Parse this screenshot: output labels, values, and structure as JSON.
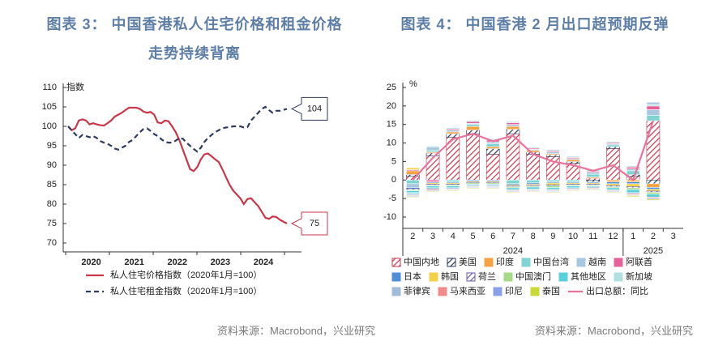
{
  "chart_data": [
    {
      "type": "line",
      "title": [
        "图表 3：  中国香港私人住宅价格和租金价格",
        "走势持续背离"
      ],
      "ylabel": "指数",
      "categories": [
        null,
        null,
        null,
        null,
        null,
        null,
        "2020",
        null,
        null,
        null,
        null,
        null,
        null,
        null,
        null,
        null,
        null,
        null,
        "2021",
        null,
        null,
        null,
        null,
        null,
        null,
        null,
        null,
        null,
        null,
        null,
        "2022",
        null,
        null,
        null,
        null,
        null,
        null,
        null,
        null,
        null,
        null,
        null,
        "2023",
        null,
        null,
        null,
        null,
        null,
        null,
        null,
        null,
        null,
        null,
        null,
        "2024",
        null,
        null,
        null,
        null,
        null,
        null,
        null
      ],
      "ylim": [
        70,
        110
      ],
      "yticks": [
        70,
        75,
        80,
        85,
        90,
        95,
        100,
        105,
        110
      ],
      "series": [
        {
          "name": "私人住宅价格指数（2020年1月=100）",
          "color": "#c8374a",
          "dash": false,
          "end_label": "75",
          "values": [
            100,
            99,
            99.5,
            101.5,
            101.8,
            101.5,
            100.5,
            100.8,
            100.5,
            100.3,
            100.2,
            100.8,
            101.5,
            102.5,
            103,
            103.5,
            104.2,
            104.8,
            104.8,
            104.8,
            104.5,
            103.8,
            103.5,
            103.7,
            103,
            101,
            100.8,
            101.5,
            101.3,
            100,
            98.5,
            96.5,
            94,
            91.5,
            89,
            88.5,
            89.5,
            91.5,
            92.8,
            93,
            92.3,
            91.5,
            90.8,
            89,
            87,
            85,
            83.5,
            82.5,
            81.5,
            80,
            81.3,
            81.5,
            80.5,
            79.5,
            78,
            76.5,
            76.2,
            76.8,
            76.7,
            76,
            75.5,
            75
          ]
        },
        {
          "name": "私人住宅租金指数（2020年1月=100）",
          "color": "#2d3a5e",
          "dash": true,
          "end_label": "104",
          "values": [
            100,
            99,
            98,
            97,
            97.8,
            97.5,
            97.2,
            97.5,
            97,
            96.2,
            95.8,
            95.5,
            95,
            94.3,
            94,
            94.5,
            95,
            96,
            96.5,
            97.5,
            98.5,
            99.3,
            99.5,
            98.8,
            98,
            97.5,
            96.7,
            96,
            95.8,
            95.8,
            96.3,
            97,
            96.8,
            95.8,
            95,
            94.2,
            93.5,
            94.5,
            96,
            97,
            97.8,
            98.5,
            99,
            99.5,
            99.7,
            99.8,
            100,
            100,
            100,
            99.7,
            99.8,
            101.5,
            102.5,
            103.5,
            104.5,
            105,
            104.2,
            103.5,
            104,
            104,
            104.2,
            104.5
          ]
        }
      ],
      "source": "资料来源：Macrobond，兴业研究"
    },
    {
      "type": "bar",
      "stacked": true,
      "title": [
        "图表 4：  中国香港 2 月出口超预期反弹"
      ],
      "ylabel": "%",
      "categories": [
        "2",
        "3",
        "4",
        "5",
        "6",
        "7",
        "8",
        "9",
        "10",
        "11",
        "12",
        "1",
        "2",
        "3"
      ],
      "x_groups": [
        {
          "label": "2024",
          "count": 11
        },
        {
          "label": "2025",
          "count": 3
        }
      ],
      "ylim": [
        -10,
        25
      ],
      "yticks": [
        -10,
        -5,
        0,
        5,
        10,
        15,
        20,
        25
      ],
      "series": [
        {
          "name": "中国内地",
          "color": "#c8374a",
          "hatch": true,
          "values": [
            1,
            6.5,
            11.5,
            12.5,
            7,
            12.5,
            7,
            6.3,
            4.5,
            0.5,
            8.5,
            1,
            16,
            null
          ]
        },
        {
          "name": "美国",
          "color": "#2d3a5e",
          "hatch": true,
          "values": [
            0.5,
            0.8,
            1,
            1,
            1.5,
            1.2,
            0.5,
            0.5,
            0.5,
            -0.5,
            0.5,
            0.5,
            -1,
            null
          ]
        },
        {
          "name": "印度",
          "color": "#f4a340",
          "values": [
            1,
            0.3,
            0.5,
            1,
            0.5,
            0.8,
            0.5,
            0.3,
            0.5,
            0.3,
            -0.5,
            -0.5,
            -1,
            null
          ]
        },
        {
          "name": "中国台湾",
          "color": "#7fd3d0",
          "values": [
            -1,
            0.5,
            -0.5,
            0.5,
            0.8,
            -1,
            -0.8,
            -0.5,
            -0.5,
            0.8,
            0.5,
            1,
            1.5,
            null
          ]
        },
        {
          "name": "越南",
          "color": "#a8c8e0",
          "values": [
            -1,
            0.8,
            0.5,
            0.3,
            0.5,
            0.5,
            0.3,
            0.5,
            0.3,
            0.5,
            0.3,
            0.5,
            1.5,
            null
          ]
        },
        {
          "name": "阿联酋",
          "color": "#e8609a",
          "values": [
            0.3,
            -0.5,
            0.3,
            0.5,
            0.5,
            0.5,
            0.3,
            0.3,
            0.3,
            0.3,
            0.3,
            0.5,
            1,
            null
          ]
        },
        {
          "name": "日本",
          "color": "#4f8fd8",
          "values": [
            -0.3,
            -0.3,
            -0.3,
            -0.3,
            -0.3,
            -0.3,
            -0.3,
            -0.3,
            -0.3,
            -0.3,
            -0.5,
            -0.5,
            -0.5,
            null
          ]
        },
        {
          "name": "韩国",
          "color": "#f2d24a",
          "values": [
            0.5,
            -0.3,
            -0.3,
            -0.3,
            -0.3,
            -0.3,
            -0.3,
            -0.5,
            -0.3,
            -0.3,
            -0.5,
            -0.8,
            -0.5,
            null
          ]
        },
        {
          "name": "荷兰",
          "color": "#6a5aa8",
          "hatch": true,
          "values": [
            -0.3,
            -0.2,
            -0.2,
            -0.2,
            -0.2,
            -0.2,
            -0.2,
            -0.2,
            -0.2,
            -0.2,
            -0.3,
            -0.3,
            -0.3,
            null
          ]
        },
        {
          "name": "中国澳门",
          "color": "#a6d98a",
          "values": [
            -0.3,
            -0.3,
            -0.3,
            -0.3,
            -0.3,
            -0.3,
            -0.3,
            -0.5,
            -0.3,
            -0.3,
            -0.3,
            -0.5,
            -0.5,
            null
          ]
        },
        {
          "name": "其他地区",
          "color": "#5ad0d8",
          "values": [
            -0.5,
            -0.5,
            -0.5,
            -0.3,
            -0.3,
            -0.5,
            -0.5,
            -0.5,
            -0.5,
            -0.3,
            -0.5,
            -0.8,
            -0.8,
            null
          ]
        },
        {
          "name": "新加坡",
          "color": "#b0e0e0",
          "values": [
            -0.5,
            0.3,
            0.3,
            0.3,
            0.3,
            0.3,
            0.3,
            0.3,
            0.3,
            0.3,
            0.3,
            0.3,
            0.5,
            null
          ]
        },
        {
          "name": "菲律宾",
          "color": "#a0bcd8",
          "values": [
            -0.3,
            -0.5,
            -0.3,
            -0.3,
            -0.3,
            -0.3,
            -0.3,
            -0.3,
            -0.3,
            -0.3,
            -0.3,
            -0.3,
            0.5,
            null
          ]
        },
        {
          "name": "马来西亚",
          "color": "#f08a8a",
          "values": [
            -0.2,
            -0.3,
            -0.2,
            -0.2,
            -0.2,
            -0.2,
            -0.2,
            -0.2,
            -0.2,
            -0.2,
            -0.2,
            -0.3,
            -0.3,
            null
          ]
        },
        {
          "name": "印尼",
          "color": "#8aa0e8",
          "values": [
            -0.2,
            -0.2,
            -0.2,
            -0.2,
            -0.2,
            -0.2,
            -0.2,
            -0.2,
            -0.2,
            -0.2,
            -0.2,
            -0.2,
            -0.3,
            null
          ]
        },
        {
          "name": "泰国",
          "color": "#c8d838",
          "values": [
            -0.2,
            -0.2,
            -0.2,
            -0.2,
            -0.2,
            -0.2,
            -0.2,
            -0.2,
            -0.2,
            -0.2,
            -0.2,
            -0.3,
            -0.3,
            null
          ]
        },
        {
          "name": "出口总额：同比",
          "color": "#e8749c",
          "type": "line",
          "values": [
            0,
            6,
            11,
            12.5,
            10.5,
            12,
            7,
            5,
            4,
            2.5,
            4,
            0,
            16,
            null
          ]
        }
      ],
      "source": "资料来源：Macrobond，兴业研究"
    }
  ]
}
